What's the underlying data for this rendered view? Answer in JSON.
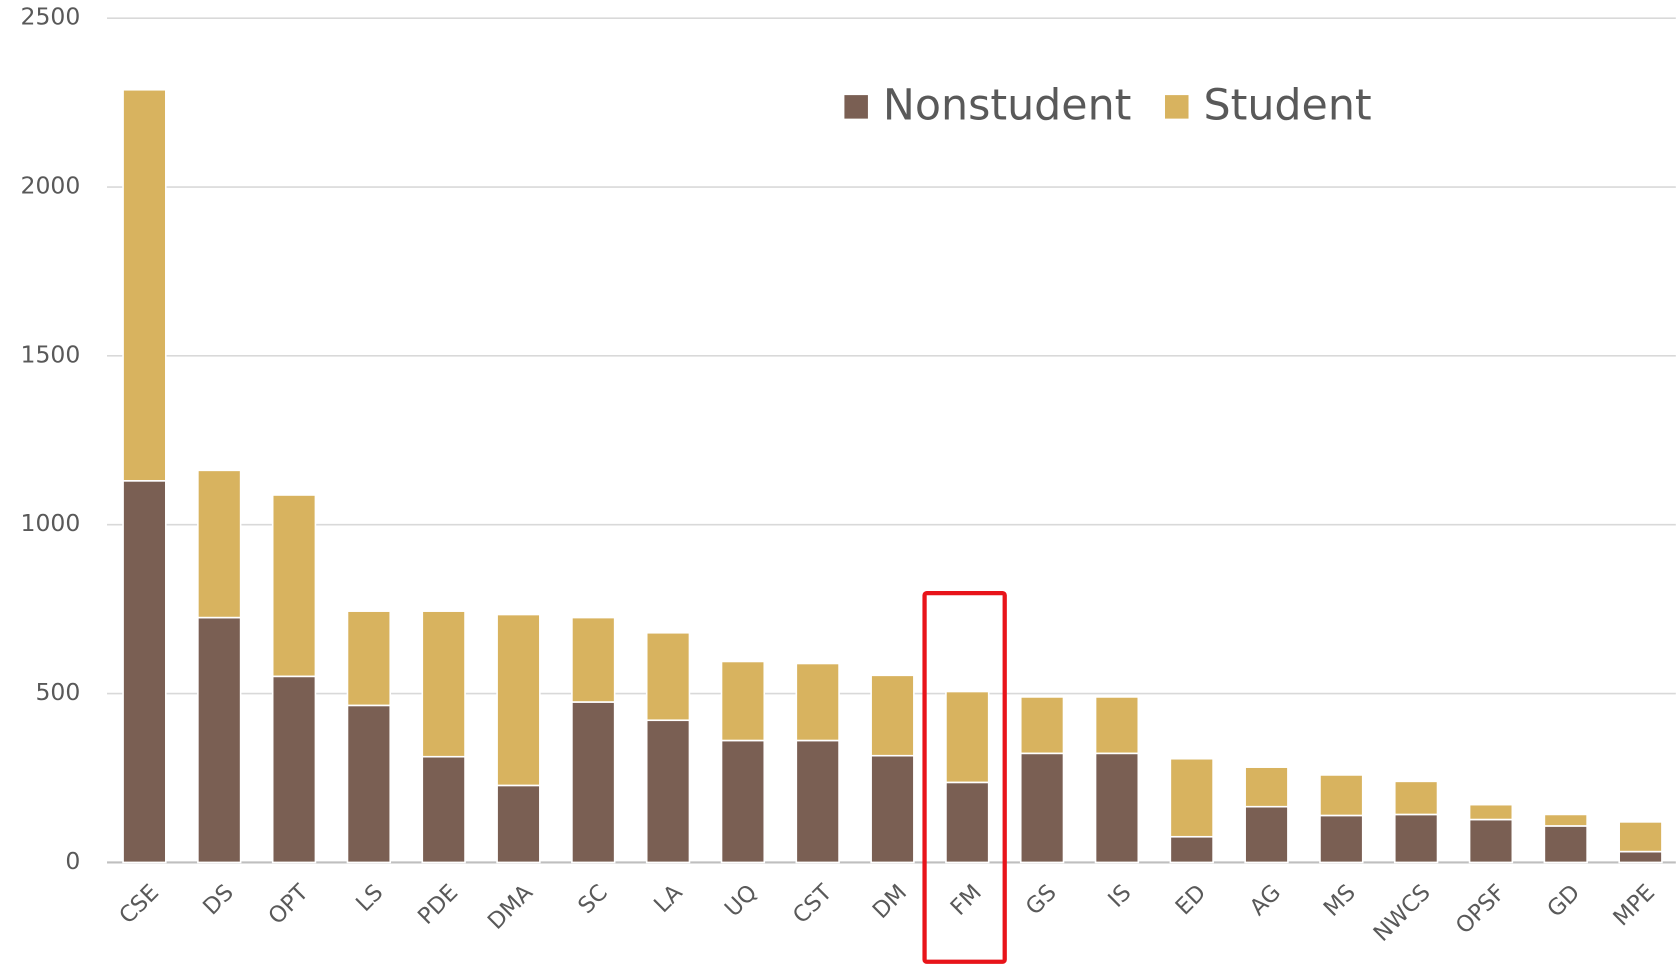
{
  "chart_data": {
    "type": "stacked_bar",
    "categories": [
      "CSE",
      "DS",
      "OPT",
      "LS",
      "PDE",
      "DMA",
      "SC",
      "LA",
      "UQ",
      "CST",
      "DM",
      "FM",
      "GS",
      "IS",
      "ED",
      "AG",
      "MS",
      "NWCS",
      "OPSF",
      "GD",
      "MPE"
    ],
    "series": [
      {
        "name": "Nonstudent",
        "color": "#7a5f53",
        "values": [
          1130,
          725,
          551,
          465,
          313,
          228,
          475,
          421,
          361,
          361,
          316,
          237,
          323,
          323,
          76,
          165,
          139,
          142,
          127,
          108,
          32
        ]
      },
      {
        "name": "Student",
        "color": "#d8b35f",
        "values": [
          1158,
          436,
          537,
          279,
          431,
          506,
          250,
          259,
          234,
          228,
          238,
          269,
          167,
          167,
          231,
          117,
          120,
          98,
          44,
          34,
          88
        ]
      }
    ],
    "ylim": [
      0,
      2500
    ],
    "yticks": [
      0,
      500,
      1000,
      1500,
      2000,
      2500
    ],
    "grid": true,
    "legend": "top"
  }
}
